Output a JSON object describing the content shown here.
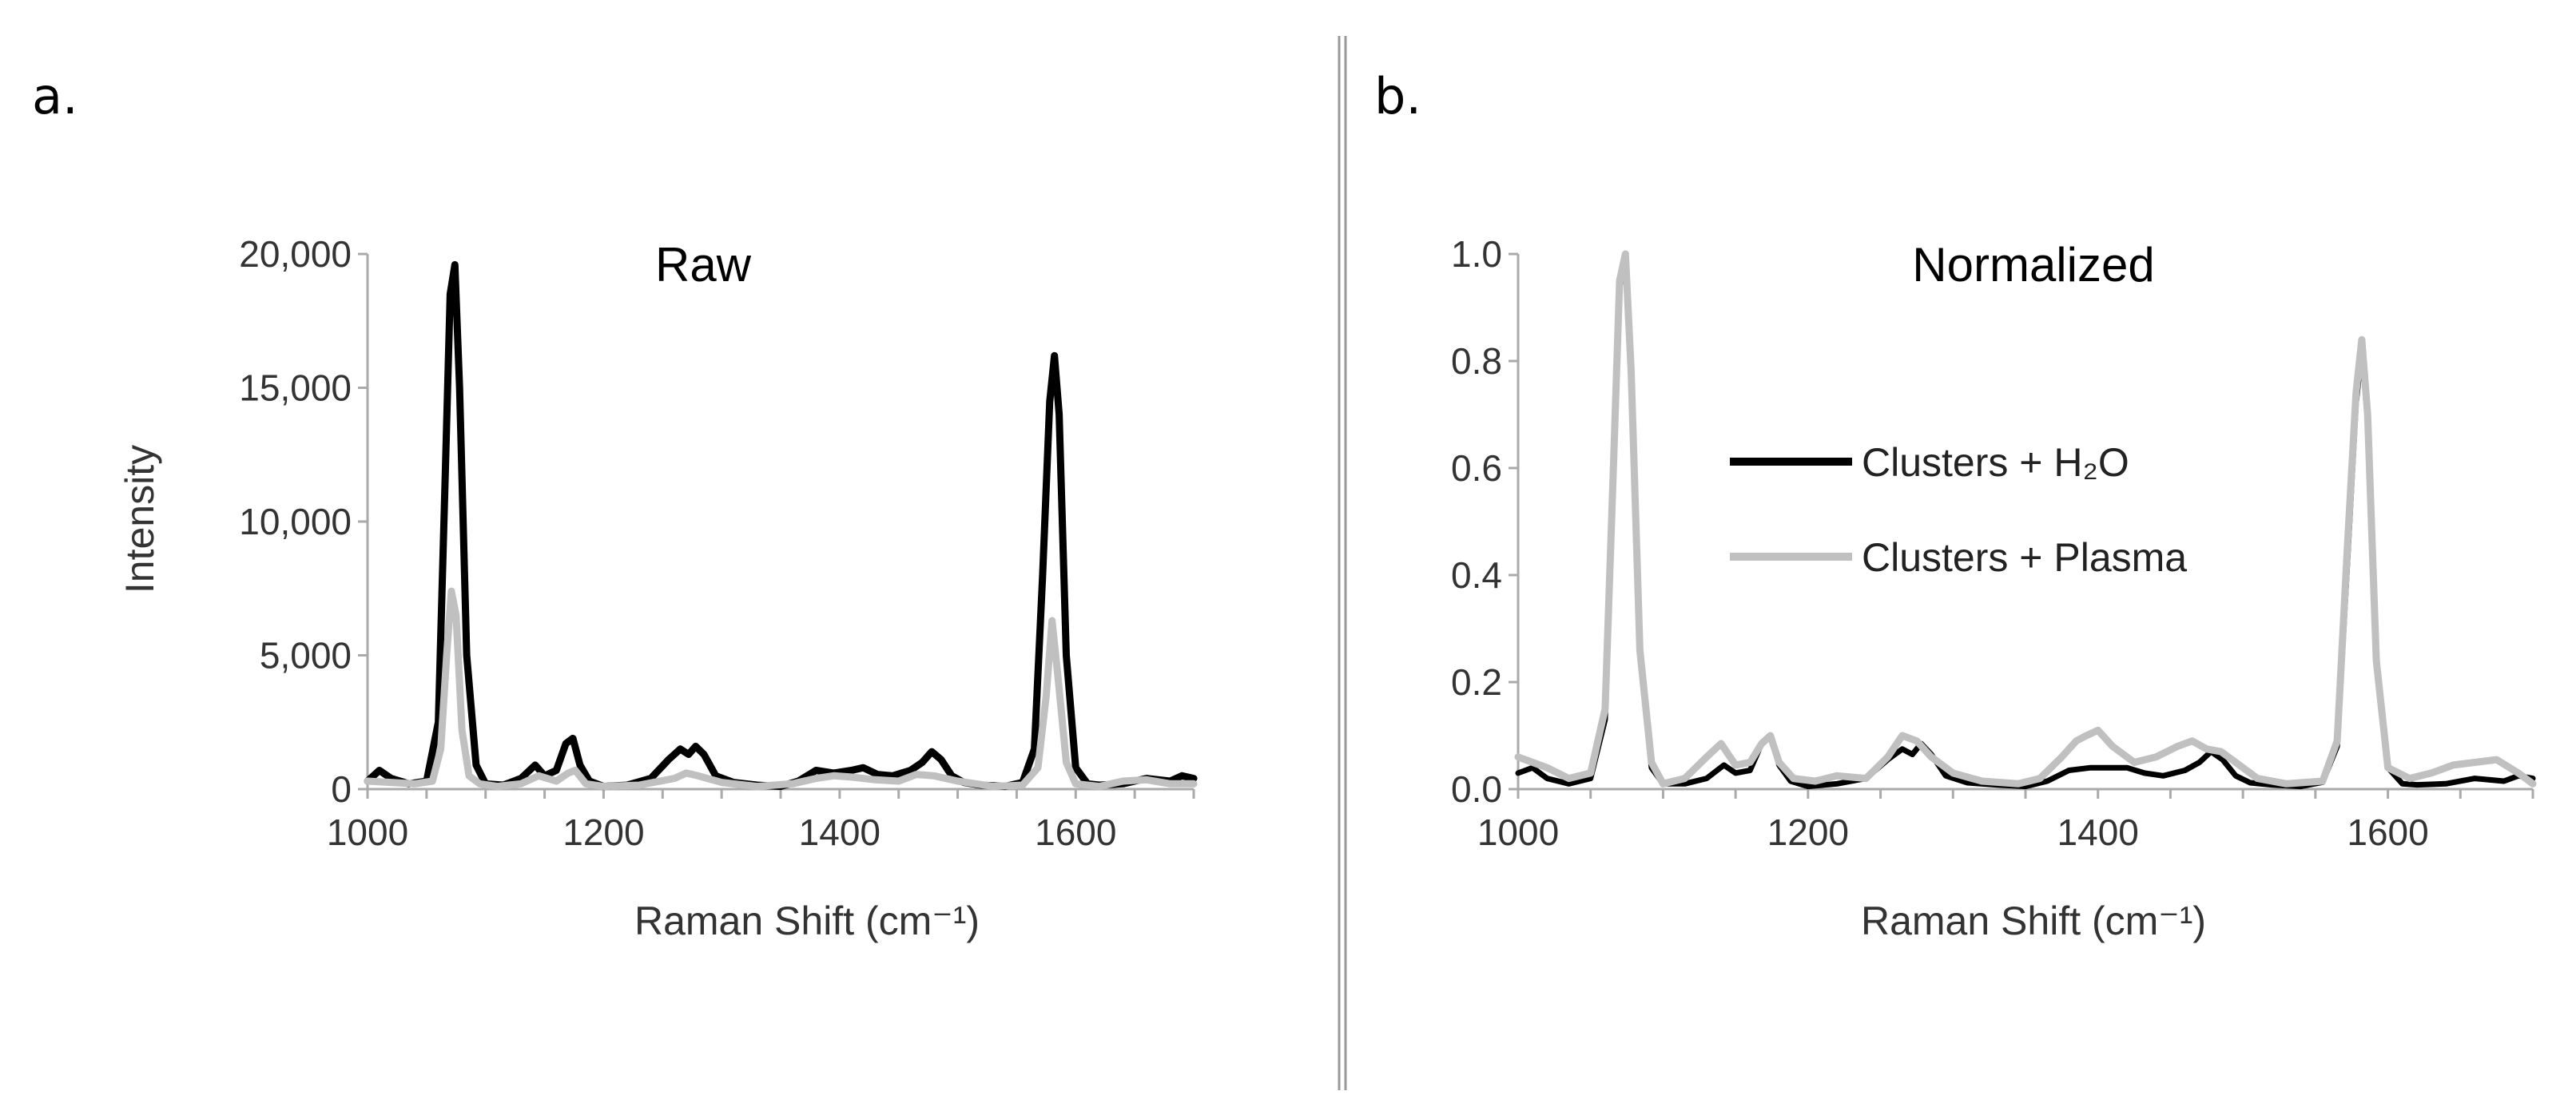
{
  "figure": {
    "panel_a_label": "a.",
    "panel_b_label": "b."
  },
  "colors": {
    "h2o_series": "#000000",
    "plasma_series": "#c0c0c0",
    "axis": "#aaaaaa",
    "divider": "#999999"
  },
  "chart_data": [
    {
      "type": "line",
      "title": "Raw",
      "xlabel": "Raman Shift (cm⁻¹)",
      "ylabel": "Intensity",
      "xlim": [
        1000,
        1700
      ],
      "ylim": [
        0,
        20000
      ],
      "xticks": [
        1000,
        1200,
        1400,
        1600
      ],
      "xtick_labels": [
        "1000",
        "1200",
        "1400",
        "1600"
      ],
      "yticks": [
        0,
        5000,
        10000,
        15000,
        20000
      ],
      "ytick_labels": [
        "0",
        "5,000",
        "10,000",
        "15,000",
        "20,000"
      ],
      "series": [
        {
          "name": "Clusters + H₂O",
          "color": "#000000",
          "x": [
            1000,
            1010,
            1020,
            1035,
            1050,
            1060,
            1066,
            1070,
            1074,
            1078,
            1084,
            1092,
            1100,
            1115,
            1130,
            1142,
            1150,
            1160,
            1168,
            1174,
            1180,
            1188,
            1200,
            1220,
            1240,
            1255,
            1265,
            1272,
            1278,
            1285,
            1295,
            1310,
            1330,
            1350,
            1365,
            1380,
            1395,
            1410,
            1420,
            1432,
            1445,
            1460,
            1470,
            1478,
            1486,
            1495,
            1505,
            1520,
            1540,
            1555,
            1565,
            1572,
            1578,
            1582,
            1586,
            1592,
            1600,
            1610,
            1620,
            1640,
            1660,
            1680,
            1690,
            1700
          ],
          "y": [
            300,
            700,
            400,
            200,
            300,
            2500,
            12000,
            18500,
            19600,
            15000,
            5000,
            900,
            200,
            150,
            400,
            900,
            500,
            700,
            1700,
            1900,
            900,
            300,
            100,
            150,
            400,
            1100,
            1500,
            1300,
            1600,
            1300,
            500,
            250,
            150,
            100,
            300,
            700,
            600,
            700,
            800,
            550,
            500,
            700,
            1000,
            1400,
            1100,
            500,
            250,
            150,
            100,
            250,
            1500,
            8000,
            14500,
            16200,
            14000,
            5000,
            800,
            200,
            150,
            200,
            400,
            300,
            500,
            400
          ]
        },
        {
          "name": "Clusters + Plasma",
          "color": "#c0c0c0",
          "x": [
            1000,
            1020,
            1040,
            1055,
            1062,
            1067,
            1071,
            1075,
            1080,
            1086,
            1095,
            1110,
            1130,
            1145,
            1160,
            1170,
            1176,
            1185,
            1200,
            1230,
            1260,
            1270,
            1280,
            1300,
            1330,
            1360,
            1380,
            1395,
            1410,
            1430,
            1450,
            1465,
            1480,
            1500,
            1530,
            1555,
            1568,
            1575,
            1580,
            1585,
            1592,
            1600,
            1620,
            1640,
            1660,
            1680,
            1700
          ],
          "y": [
            300,
            250,
            200,
            300,
            1500,
            5000,
            7400,
            6500,
            2200,
            500,
            200,
            100,
            200,
            500,
            300,
            600,
            700,
            200,
            100,
            150,
            400,
            600,
            500,
            250,
            100,
            200,
            400,
            500,
            450,
            350,
            300,
            550,
            500,
            300,
            100,
            150,
            800,
            3500,
            6300,
            4200,
            1000,
            200,
            100,
            300,
            350,
            200,
            200
          ]
        }
      ]
    },
    {
      "type": "line",
      "title": "Normalized",
      "xlabel": "Raman Shift (cm⁻¹)",
      "ylabel": "",
      "xlim": [
        1000,
        1700
      ],
      "ylim": [
        0,
        1.0
      ],
      "xticks": [
        1000,
        1200,
        1400,
        1600
      ],
      "xtick_labels": [
        "1000",
        "1200",
        "1400",
        "1600"
      ],
      "yticks": [
        0,
        0.2,
        0.4,
        0.6,
        0.8,
        1.0
      ],
      "ytick_labels": [
        "0.0",
        "0.2",
        "0.4",
        "0.6",
        "0.8",
        "1.0"
      ],
      "legend": {
        "location": "center",
        "entries": [
          "Clusters + H₂O",
          "Clusters + Plasma"
        ]
      },
      "series": [
        {
          "name": "Clusters + H₂O",
          "color": "#000000",
          "x": [
            1000,
            1010,
            1020,
            1035,
            1050,
            1060,
            1066,
            1070,
            1074,
            1078,
            1084,
            1092,
            1100,
            1115,
            1130,
            1142,
            1150,
            1160,
            1168,
            1174,
            1180,
            1188,
            1200,
            1220,
            1240,
            1255,
            1265,
            1272,
            1278,
            1285,
            1295,
            1310,
            1330,
            1350,
            1365,
            1380,
            1395,
            1410,
            1420,
            1432,
            1445,
            1460,
            1470,
            1478,
            1486,
            1495,
            1505,
            1520,
            1540,
            1555,
            1565,
            1572,
            1578,
            1582,
            1586,
            1592,
            1600,
            1610,
            1620,
            1640,
            1660,
            1680,
            1690,
            1700
          ],
          "y": [
            0.03,
            0.04,
            0.02,
            0.01,
            0.02,
            0.13,
            0.6,
            0.94,
            0.98,
            0.76,
            0.25,
            0.04,
            0.01,
            0.01,
            0.02,
            0.045,
            0.03,
            0.035,
            0.085,
            0.1,
            0.045,
            0.015,
            0.005,
            0.01,
            0.02,
            0.055,
            0.075,
            0.065,
            0.085,
            0.065,
            0.025,
            0.012,
            0.008,
            0.005,
            0.015,
            0.035,
            0.04,
            0.04,
            0.04,
            0.03,
            0.025,
            0.035,
            0.05,
            0.07,
            0.055,
            0.025,
            0.012,
            0.008,
            0.005,
            0.013,
            0.08,
            0.42,
            0.72,
            0.82,
            0.7,
            0.25,
            0.04,
            0.01,
            0.008,
            0.01,
            0.02,
            0.015,
            0.025,
            0.02
          ]
        },
        {
          "name": "Clusters + Plasma",
          "color": "#c0c0c0",
          "x": [
            1000,
            1010,
            1020,
            1035,
            1050,
            1060,
            1066,
            1070,
            1074,
            1078,
            1084,
            1092,
            1100,
            1115,
            1130,
            1140,
            1150,
            1160,
            1168,
            1174,
            1180,
            1190,
            1205,
            1220,
            1240,
            1255,
            1265,
            1275,
            1285,
            1300,
            1320,
            1345,
            1360,
            1375,
            1385,
            1392,
            1400,
            1410,
            1425,
            1440,
            1455,
            1465,
            1475,
            1485,
            1495,
            1510,
            1530,
            1555,
            1565,
            1572,
            1578,
            1582,
            1586,
            1592,
            1600,
            1615,
            1630,
            1645,
            1660,
            1675,
            1690,
            1700
          ],
          "y": [
            0.06,
            0.05,
            0.04,
            0.02,
            0.03,
            0.15,
            0.62,
            0.95,
            1.0,
            0.78,
            0.26,
            0.05,
            0.01,
            0.02,
            0.06,
            0.085,
            0.045,
            0.05,
            0.085,
            0.1,
            0.05,
            0.02,
            0.015,
            0.025,
            0.02,
            0.06,
            0.1,
            0.09,
            0.06,
            0.03,
            0.015,
            0.01,
            0.02,
            0.06,
            0.09,
            0.1,
            0.11,
            0.08,
            0.05,
            0.06,
            0.08,
            0.09,
            0.075,
            0.07,
            0.05,
            0.02,
            0.01,
            0.015,
            0.09,
            0.45,
            0.74,
            0.84,
            0.7,
            0.24,
            0.04,
            0.02,
            0.03,
            0.045,
            0.05,
            0.055,
            0.03,
            0.01
          ]
        }
      ]
    }
  ]
}
